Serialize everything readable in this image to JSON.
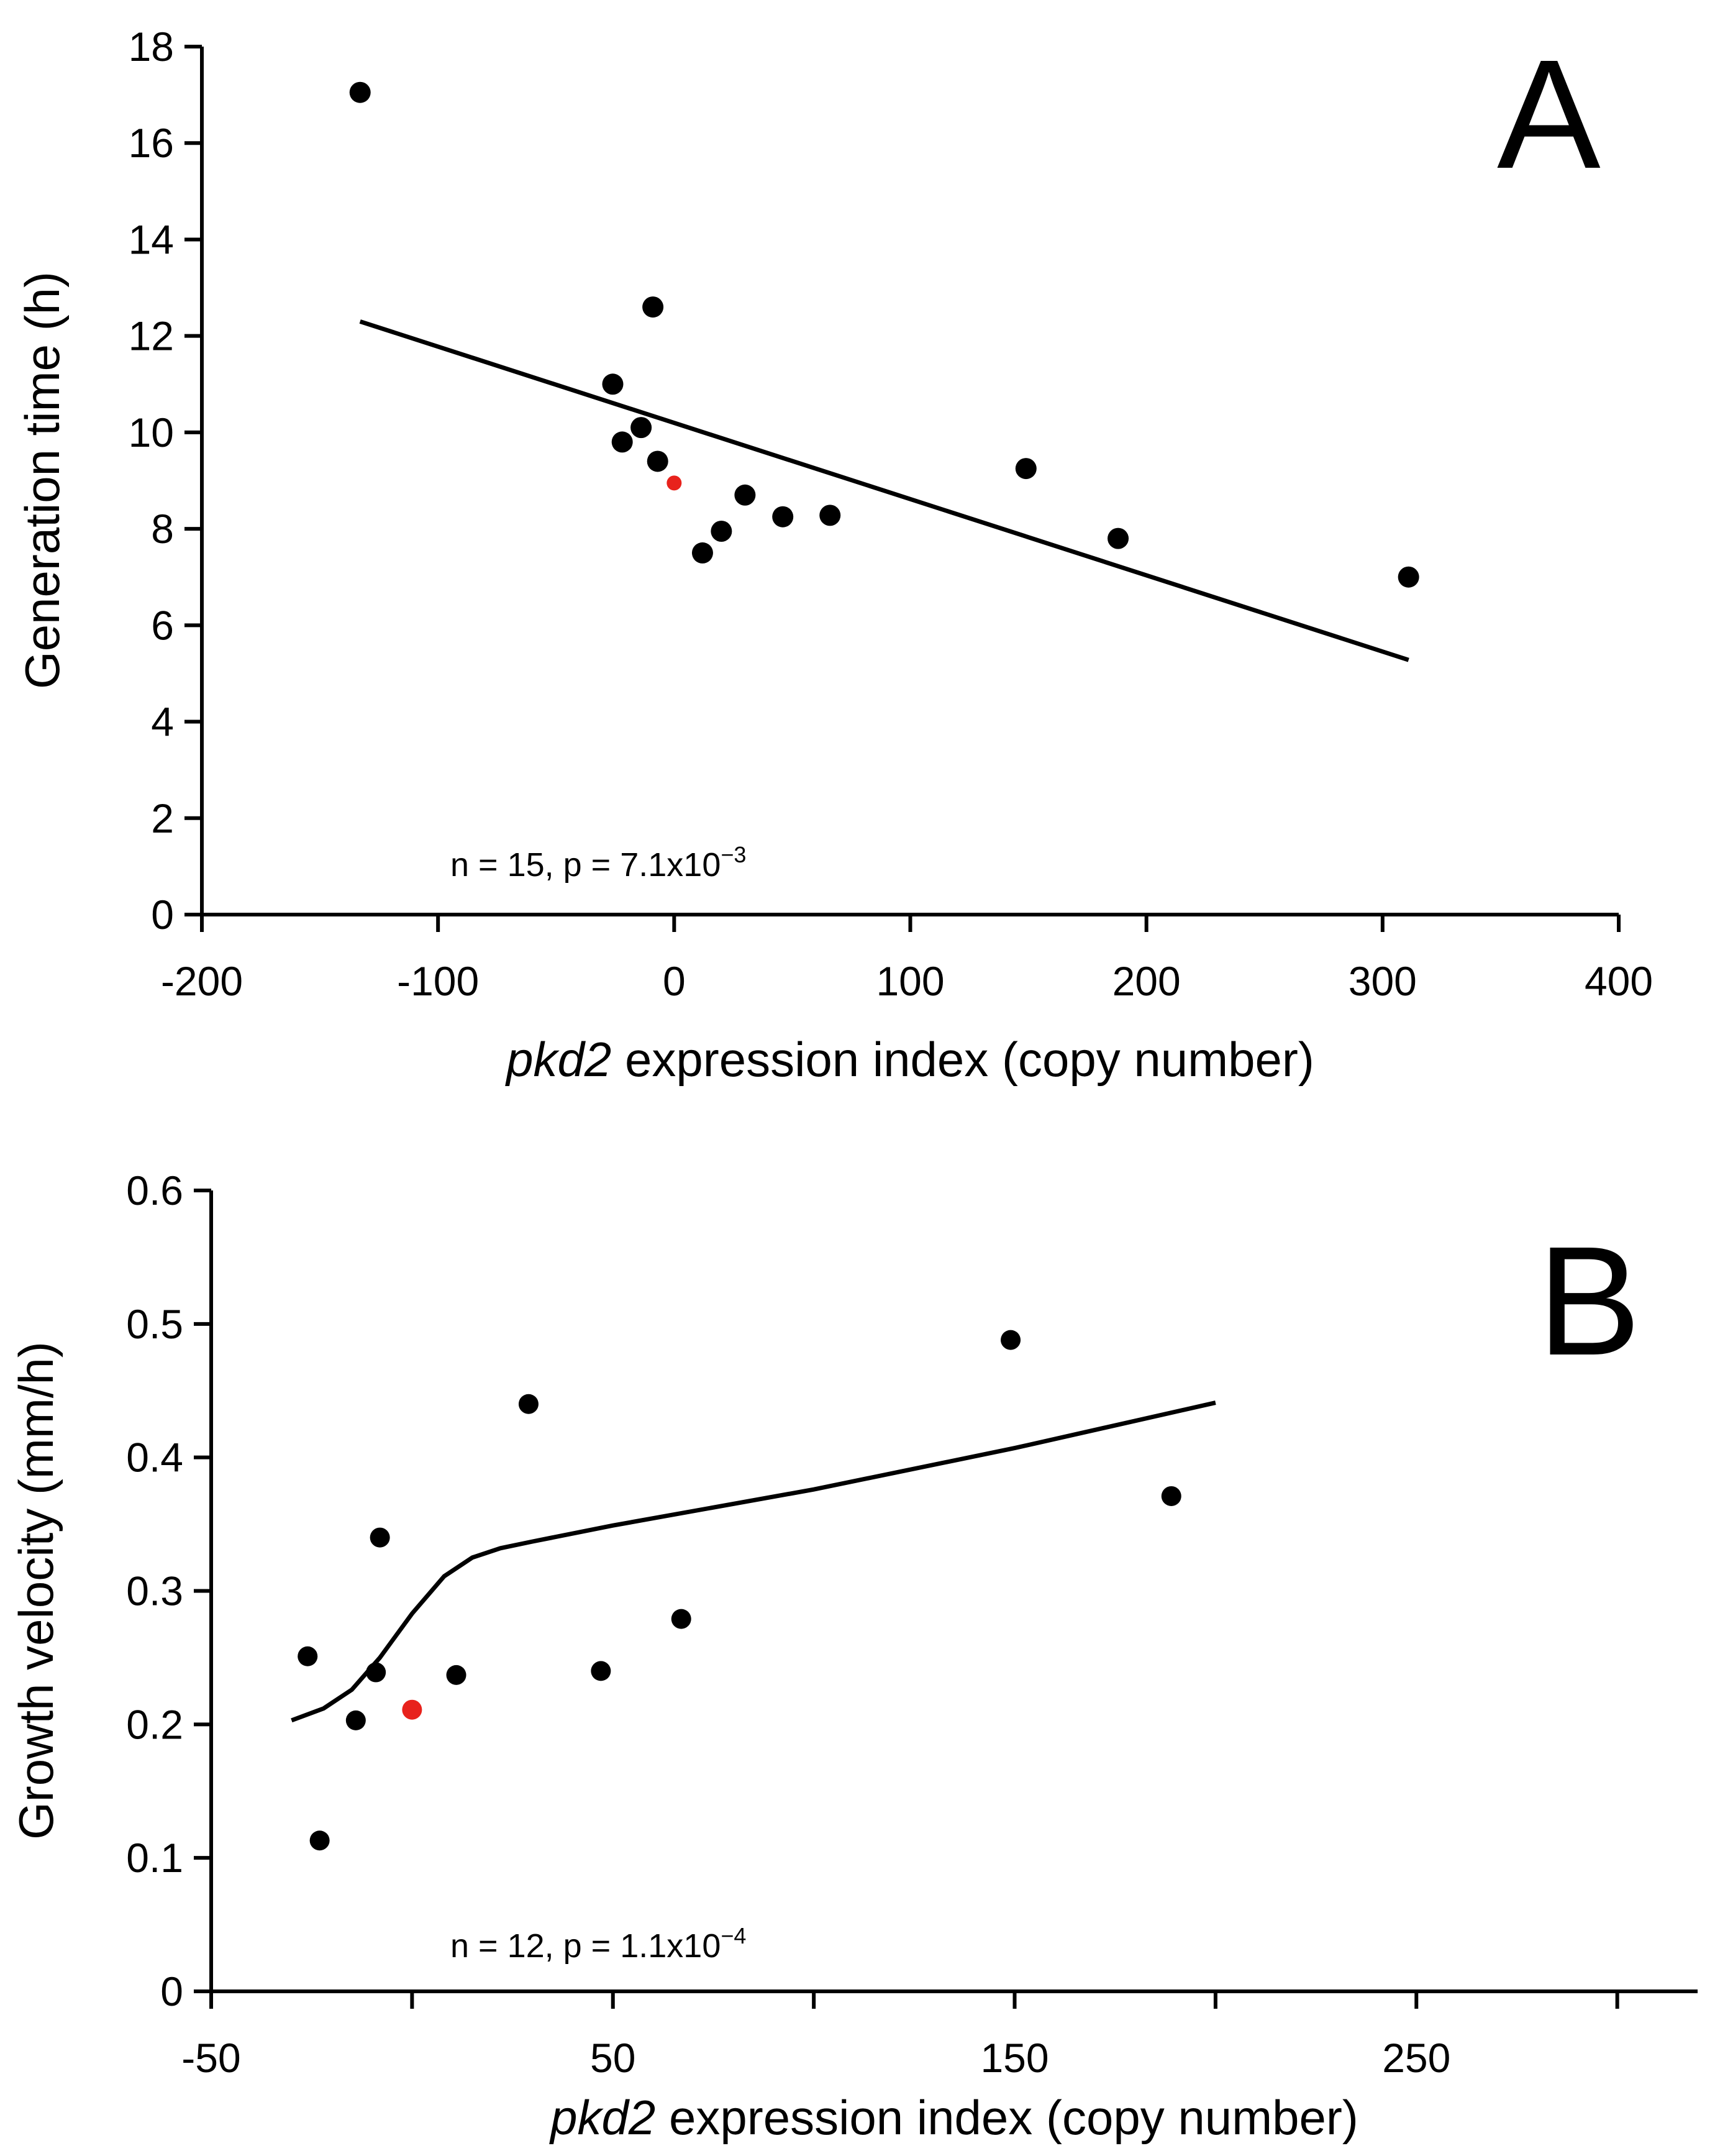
{
  "chart_data": [
    {
      "type": "scatter",
      "panel": "A",
      "xlabel_italic": "pkd2",
      "xlabel_rest": " expression index (copy number)",
      "ylabel": "Generation time (h)",
      "xlim": [
        -200,
        400
      ],
      "ylim": [
        0,
        18
      ],
      "xticks": [
        -200,
        -100,
        0,
        100,
        200,
        300,
        400
      ],
      "yticks": [
        0,
        2,
        4,
        6,
        8,
        10,
        12,
        14,
        16,
        18
      ],
      "annotation": {
        "main": "n = 15, p = 7.1x10",
        "exponent": "−3"
      },
      "points": [
        {
          "x": -133,
          "y": 17.05,
          "color": "#000000"
        },
        {
          "x": -9,
          "y": 12.6,
          "color": "#000000"
        },
        {
          "x": -26,
          "y": 11.0,
          "color": "#000000"
        },
        {
          "x": -14,
          "y": 10.1,
          "color": "#000000"
        },
        {
          "x": -22,
          "y": 9.8,
          "color": "#000000"
        },
        {
          "x": -7,
          "y": 9.4,
          "color": "#000000"
        },
        {
          "x": 0,
          "y": 8.95,
          "color": "#e8221c"
        },
        {
          "x": 30,
          "y": 8.7,
          "color": "#000000"
        },
        {
          "x": 46,
          "y": 8.25,
          "color": "#000000"
        },
        {
          "x": 66,
          "y": 8.28,
          "color": "#000000"
        },
        {
          "x": 20,
          "y": 7.95,
          "color": "#000000"
        },
        {
          "x": 12,
          "y": 7.5,
          "color": "#000000"
        },
        {
          "x": 149,
          "y": 9.25,
          "color": "#000000"
        },
        {
          "x": 188,
          "y": 7.8,
          "color": "#000000"
        },
        {
          "x": 311,
          "y": 7.0,
          "color": "#000000"
        }
      ],
      "fit": [
        [
          -133,
          12.3
        ],
        [
          311,
          5.28
        ]
      ]
    },
    {
      "type": "scatter",
      "panel": "B",
      "xlabel_italic": "pkd2",
      "xlabel_rest": " expression index (copy number)",
      "ylabel": "Growth velocity (mm/h)",
      "xlim": [
        -50,
        320
      ],
      "ylim": [
        0,
        0.6
      ],
      "xticks": [
        -50,
        50,
        150,
        250
      ],
      "ytick_values": [
        0,
        0.1,
        0.2,
        0.3,
        0.4,
        0.5,
        0.6
      ],
      "ytick_labels": [
        "0",
        "0.1",
        "0.2",
        "0.3",
        "0.4",
        "0.5",
        "0.6"
      ],
      "annotation": {
        "main": "n = 12, p = 1.1x10",
        "exponent": "−4"
      },
      "points": [
        {
          "x": -26,
          "y": 0.251,
          "color": "#000000"
        },
        {
          "x": -23,
          "y": 0.113,
          "color": "#000000"
        },
        {
          "x": -14,
          "y": 0.203,
          "color": "#000000"
        },
        {
          "x": -9,
          "y": 0.239,
          "color": "#000000"
        },
        {
          "x": -8,
          "y": 0.34,
          "color": "#000000"
        },
        {
          "x": 0,
          "y": 0.211,
          "color": "#e8221c"
        },
        {
          "x": 11,
          "y": 0.237,
          "color": "#000000"
        },
        {
          "x": 29,
          "y": 0.44,
          "color": "#000000"
        },
        {
          "x": 47,
          "y": 0.24,
          "color": "#000000"
        },
        {
          "x": 67,
          "y": 0.279,
          "color": "#000000"
        },
        {
          "x": 149,
          "y": 0.488,
          "color": "#000000"
        },
        {
          "x": 189,
          "y": 0.371,
          "color": "#000000"
        }
      ],
      "fit": [
        [
          -30,
          0.203
        ],
        [
          -22,
          0.212
        ],
        [
          -15,
          0.226
        ],
        [
          -8,
          0.25
        ],
        [
          0,
          0.283
        ],
        [
          8,
          0.311
        ],
        [
          15,
          0.325
        ],
        [
          22,
          0.332
        ],
        [
          30,
          0.337
        ],
        [
          50,
          0.349
        ],
        [
          100,
          0.376
        ],
        [
          150,
          0.407
        ],
        [
          200,
          0.441
        ]
      ]
    }
  ]
}
